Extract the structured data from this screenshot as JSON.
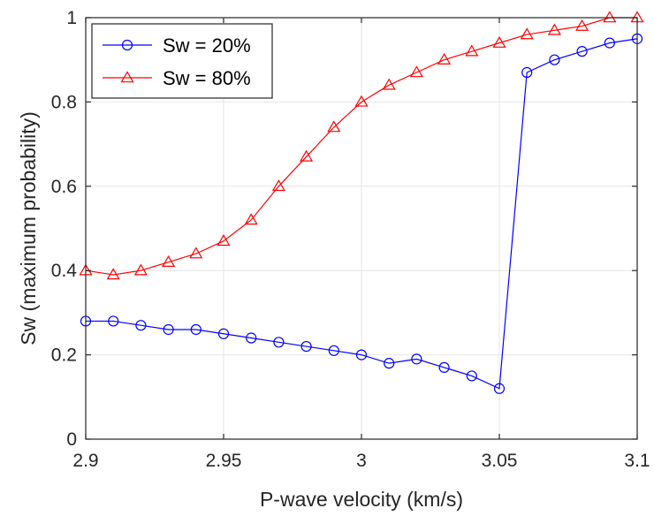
{
  "chart_data": {
    "type": "line",
    "xlabel": "P-wave velocity (km/s)",
    "ylabel": "Sw (maximum probability)",
    "xlim": [
      2.9,
      3.1
    ],
    "ylim": [
      0,
      1
    ],
    "xticks": [
      2.9,
      2.95,
      3.0,
      3.05,
      3.1
    ],
    "xtick_labels": [
      "2.9",
      "2.95",
      "3",
      "3.05",
      "3.1"
    ],
    "yticks": [
      0,
      0.2,
      0.4,
      0.6,
      0.8,
      1.0
    ],
    "ytick_labels": [
      "0",
      "0.2",
      "0.4",
      "0.6",
      "0.8",
      "1"
    ],
    "grid": true,
    "legend_position": "top-left",
    "x": [
      2.9,
      2.91,
      2.92,
      2.93,
      2.94,
      2.95,
      2.96,
      2.97,
      2.98,
      2.99,
      3.0,
      3.01,
      3.02,
      3.03,
      3.04,
      3.05,
      3.06,
      3.07,
      3.08,
      3.09,
      3.1
    ],
    "series": [
      {
        "name": "Sw = 20%",
        "color": "#0000ff",
        "marker": "circle",
        "values": [
          0.28,
          0.28,
          0.27,
          0.26,
          0.26,
          0.25,
          0.24,
          0.23,
          0.22,
          0.21,
          0.2,
          0.18,
          0.19,
          0.17,
          0.15,
          0.12,
          0.87,
          0.9,
          0.92,
          0.94,
          0.95
        ]
      },
      {
        "name": "Sw = 80%",
        "color": "#ff0000",
        "marker": "triangle",
        "values": [
          0.4,
          0.39,
          0.4,
          0.42,
          0.44,
          0.47,
          0.52,
          0.6,
          0.67,
          0.74,
          0.8,
          0.84,
          0.87,
          0.9,
          0.92,
          0.94,
          0.96,
          0.97,
          0.98,
          1.0,
          1.0
        ]
      }
    ]
  }
}
